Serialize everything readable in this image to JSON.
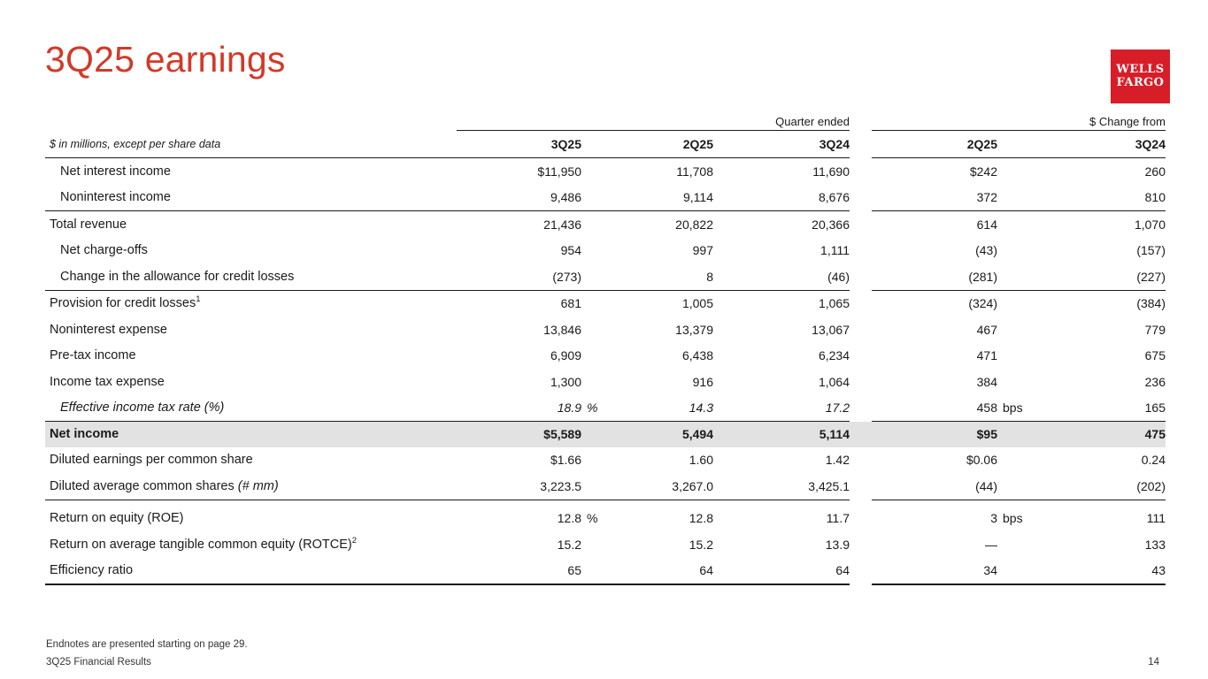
{
  "slide": {
    "title": "3Q25 earnings",
    "title_color": "#D13A28",
    "logo": {
      "line1": "WELLS",
      "line2": "FARGO",
      "color": "#D71E28"
    }
  },
  "table": {
    "unit_note": "$ in millions, except per share data",
    "group1_header": "Quarter ended",
    "group2_header": "$ Change from",
    "quarter_columns": [
      "3Q25",
      "2Q25",
      "3Q24"
    ],
    "change_columns": [
      "2Q25",
      "3Q24"
    ],
    "rows": [
      {
        "label": "Net interest income",
        "indent": true,
        "q1": "$11,950",
        "q2": "11,708",
        "q3": "11,690",
        "c1": "$242",
        "c2": "260"
      },
      {
        "label": "Noninterest income",
        "indent": true,
        "q1": "9,486",
        "q2": "9,114",
        "q3": "8,676",
        "c1": "372",
        "c2": "810"
      },
      {
        "label": "Total revenue",
        "sep_before": true,
        "q1": "21,436",
        "q2": "20,822",
        "q3": "20,366",
        "c1": "614",
        "c2": "1,070"
      },
      {
        "label": "Net charge-offs",
        "indent": true,
        "q1": "954",
        "q2": "997",
        "q3": "1,111",
        "c1": "(43)",
        "c2": "(157)"
      },
      {
        "label": "Change in the allowance for credit losses",
        "indent": true,
        "q1": "(273)",
        "q2": "8",
        "q3": "(46)",
        "c1": "(281)",
        "c2": "(227)"
      },
      {
        "label": "Provision for credit losses",
        "sup": "1",
        "sep_before": true,
        "q1": "681",
        "q2": "1,005",
        "q3": "1,065",
        "c1": "(324)",
        "c2": "(384)"
      },
      {
        "label": "Noninterest expense",
        "q1": "13,846",
        "q2": "13,379",
        "q3": "13,067",
        "c1": "467",
        "c2": "779"
      },
      {
        "label": "Pre-tax income",
        "q1": "6,909",
        "q2": "6,438",
        "q3": "6,234",
        "c1": "471",
        "c2": "675"
      },
      {
        "label": "Income tax expense",
        "q1": "1,300",
        "q2": "916",
        "q3": "1,064",
        "c1": "384",
        "c2": "236"
      },
      {
        "label": "Effective income tax rate (%)",
        "indent": true,
        "italic": true,
        "q1": "18.9",
        "q1_sfx": "%",
        "q2": "14.3",
        "q3": "17.2",
        "c1": "458",
        "c1_sfx": "bps",
        "c2": "165"
      },
      {
        "label": "Net income",
        "highlight": true,
        "sep_before": true,
        "q1": "$5,589",
        "q2": "5,494",
        "q3": "5,114",
        "c1": "$95",
        "c2": "475"
      },
      {
        "label": "Diluted earnings per common share",
        "q1": "$1.66",
        "q2": "1.60",
        "q3": "1.42",
        "c1": "$0.06",
        "c2": "0.24"
      },
      {
        "label": "Diluted average common shares ",
        "label_italic": "(# mm)",
        "q1": "3,223.5",
        "q2": "3,267.0",
        "q3": "3,425.1",
        "c1": "(44)",
        "c2": "(202)"
      },
      {
        "label": "Return on equity (ROE)",
        "sep_before": true,
        "gap_top": true,
        "q1": "12.8",
        "q1_sfx": "%",
        "q2": "12.8",
        "q3": "11.7",
        "c1": "3",
        "c1_sfx": "bps",
        "c2": "111"
      },
      {
        "label": "Return on average tangible common equity (ROTCE)",
        "sup": "2",
        "q1": "15.2",
        "q2": "15.2",
        "q3": "13.9",
        "c1": "—",
        "c2": "133"
      },
      {
        "label": "Efficiency ratio",
        "q1": "65",
        "q2": "64",
        "q3": "64",
        "c1": "34",
        "c2": "43"
      }
    ]
  },
  "footer": {
    "endnote": "Endnotes are presented starting on page 29.",
    "deck_title": "3Q25 Financial Results",
    "page_number": "14"
  }
}
